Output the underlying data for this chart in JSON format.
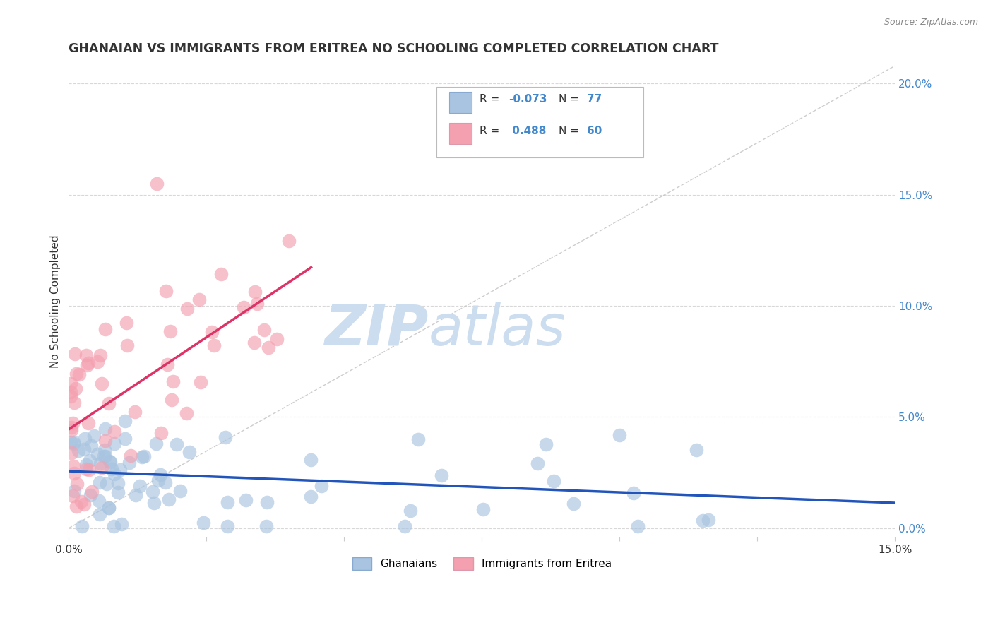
{
  "title": "GHANAIAN VS IMMIGRANTS FROM ERITREA NO SCHOOLING COMPLETED CORRELATION CHART",
  "source_text": "Source: ZipAtlas.com",
  "ylabel": "No Schooling Completed",
  "xmin": 0.0,
  "xmax": 0.15,
  "ymin": -0.004,
  "ymax": 0.208,
  "right_yticks": [
    0.0,
    0.05,
    0.1,
    0.15,
    0.2
  ],
  "right_yticklabels": [
    "0.0%",
    "5.0%",
    "10.0%",
    "15.0%",
    "20.0%"
  ],
  "xticks": [
    0.0,
    0.025,
    0.05,
    0.075,
    0.1,
    0.125,
    0.15
  ],
  "xticklabels": [
    "0.0%",
    "",
    "",
    "",
    "",
    "",
    "15.0%"
  ],
  "color_ghanaian": "#a8c4e0",
  "color_eritrea": "#f4a0b0",
  "color_trend_ghanaian": "#2255bb",
  "color_trend_eritrea": "#dd3366",
  "color_diagonal": "#c8c8c8",
  "watermark_zip": "ZIP",
  "watermark_atlas": "atlas",
  "watermark_color": "#ccddef",
  "title_color": "#333333",
  "axis_label_color": "#333333",
  "right_label_color": "#4488cc",
  "legend_color_r": "#4488cc",
  "legend_color_label": "#333333",
  "bottom_legend_label1": "Ghanaians",
  "bottom_legend_label2": "Immigrants from Eritrea"
}
